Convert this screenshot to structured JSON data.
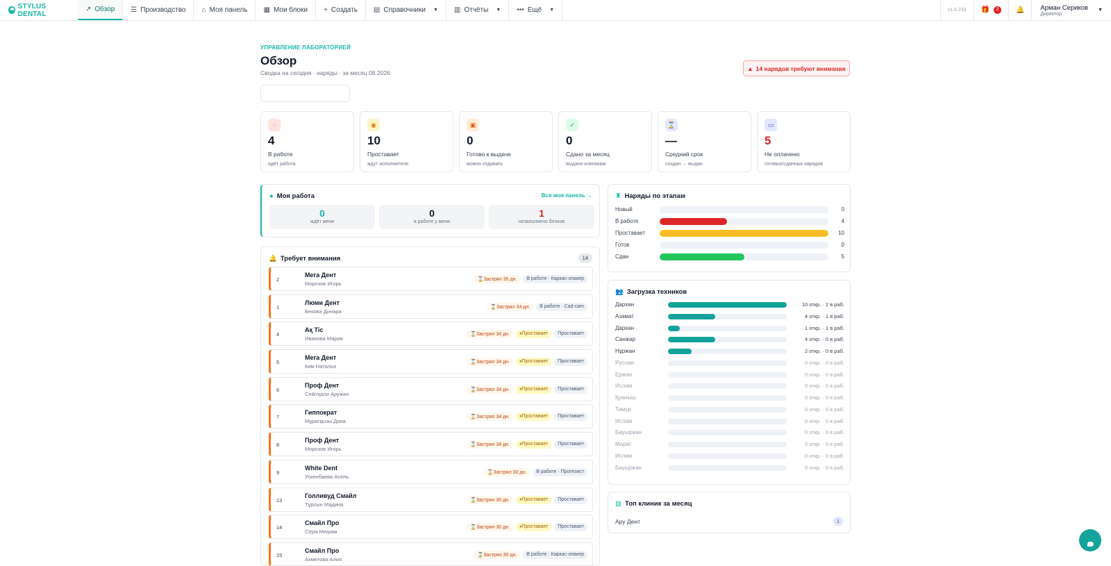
{
  "nav": {
    "brand": "STYLUS DENTAL",
    "items": [
      {
        "label": "Обзор",
        "icon": "chart-icon"
      },
      {
        "label": "Производство",
        "icon": "list-icon"
      },
      {
        "label": "Моя панель",
        "icon": "home-icon"
      },
      {
        "label": "Мои блоки",
        "icon": "grid-icon"
      },
      {
        "label": "Создать",
        "icon": "plus-icon"
      },
      {
        "label": "Справочники",
        "icon": "book-icon"
      },
      {
        "label": "Отчёты",
        "icon": "bar-chart-icon"
      },
      {
        "label": "Ещё",
        "icon": "dots-icon"
      }
    ],
    "version": "v1.6.233",
    "gift_count": "2",
    "user_name": "Арман Сериков",
    "user_role": "Директор"
  },
  "header": {
    "kicker": "УПРАВЛЕНИЕ ЛАБОРАТОРИЕЙ",
    "title": "Обзор",
    "subtitle": "Сводка на сегодня · наряды · за месяц 08.2026",
    "alert": "14 нарядов требуют внимания"
  },
  "kpis": [
    {
      "value": "4",
      "label": "В работе",
      "sub": "идёт работа",
      "icon": "spinner-icon",
      "bg": "#fee2e2",
      "fg": "#ef4444"
    },
    {
      "value": "10",
      "label": "Проставает",
      "sub": "ждут исполнителя",
      "icon": "pause-circle-icon",
      "bg": "#fef3c7",
      "fg": "#d97706"
    },
    {
      "value": "0",
      "label": "Готово к выдаче",
      "sub": "можно отдавать",
      "icon": "box-icon",
      "bg": "#ffedd5",
      "fg": "#ea580c"
    },
    {
      "value": "0",
      "label": "Сдано за месяц",
      "sub": "выдано клиникам",
      "icon": "check-icon",
      "bg": "#dcfce7",
      "fg": "#16a34a"
    },
    {
      "value": "—",
      "label": "Средний срок",
      "sub": "создан → выдан",
      "icon": "hourglass-icon",
      "bg": "#e0e7ff",
      "fg": "#4f46e5"
    },
    {
      "value": "5",
      "label": "Не оплачено",
      "sub": "готовых/сданных нарядов",
      "icon": "money-icon",
      "bg": "#e0e7ff",
      "fg": "#4f46e5",
      "value_color": "#dc2626"
    }
  ],
  "my_work": {
    "title": "Моя работа",
    "link": "Вся моя панель →",
    "boxes": [
      {
        "value": "0",
        "label": "ждёт меня",
        "color": "#14b8a6"
      },
      {
        "value": "0",
        "label": "в работе у меня",
        "color": "#111827"
      },
      {
        "value": "1",
        "label": "незаполнено блоков",
        "color": "#dc2626"
      }
    ]
  },
  "attention": {
    "title": "Требует внимания",
    "count": "14",
    "rows": [
      {
        "num": "2",
        "clinic": "Мега Дент",
        "person": "Морозов Игорь",
        "tags": [
          {
            "t": "⌛Застрял 35 дн.",
            "k": "stuck"
          },
          {
            "t": "В работе · Каркас-опакер",
            "k": "st"
          }
        ]
      },
      {
        "num": "1",
        "clinic": "Люми Дент",
        "person": "Бекова Динара",
        "tags": [
          {
            "t": "⌛Застрял 34 дн.",
            "k": "stuck"
          },
          {
            "t": "В работе · Cad-cam",
            "k": "st"
          }
        ]
      },
      {
        "num": "4",
        "clinic": "Ақ Тіс",
        "person": "Иванова Мария",
        "tags": [
          {
            "t": "⌛Застрял 34 дн.",
            "k": "stuck"
          },
          {
            "t": "⏸Проставает",
            "k": "wait"
          },
          {
            "t": "Проставает",
            "k": "st"
          }
        ]
      },
      {
        "num": "5",
        "clinic": "Мега Дент",
        "person": "Ким Наталья",
        "tags": [
          {
            "t": "⌛Застрял 34 дн.",
            "k": "stuck"
          },
          {
            "t": "⏸Проставает",
            "k": "wait"
          },
          {
            "t": "Проставает",
            "k": "st"
          }
        ]
      },
      {
        "num": "6",
        "clinic": "Проф Дент",
        "person": "Сейітқали Аружан",
        "tags": [
          {
            "t": "⌛Застрял 34 дн.",
            "k": "stuck"
          },
          {
            "t": "⏸Проставает",
            "k": "wait"
          },
          {
            "t": "Проставает",
            "k": "st"
          }
        ]
      },
      {
        "num": "7",
        "clinic": "Гиппократ",
        "person": "Мұратқызы Дана",
        "tags": [
          {
            "t": "⌛Застрял 34 дн.",
            "k": "stuck"
          },
          {
            "t": "⏸Проставает",
            "k": "wait"
          },
          {
            "t": "Проставает",
            "k": "st"
          }
        ]
      },
      {
        "num": "8",
        "clinic": "Проф Дент",
        "person": "Морозов Игорь",
        "tags": [
          {
            "t": "⌛Застрял 34 дн.",
            "k": "stuck"
          },
          {
            "t": "⏸Проставает",
            "k": "wait"
          },
          {
            "t": "Проставает",
            "k": "st"
          }
        ]
      },
      {
        "num": "9",
        "clinic": "White Dent",
        "person": "Ускенбаева Асель",
        "tags": [
          {
            "t": "⌛Застрял 30 дн.",
            "k": "stuck"
          },
          {
            "t": "В работе · Протезист",
            "k": "st"
          }
        ]
      },
      {
        "num": "13",
        "clinic": "Голливуд Смайл",
        "person": "Тұрсын Мадина",
        "tags": [
          {
            "t": "⌛Застрял 30 дн.",
            "k": "stuck"
          },
          {
            "t": "⏸Проставает",
            "k": "wait"
          },
          {
            "t": "Проставает",
            "k": "st"
          }
        ]
      },
      {
        "num": "14",
        "clinic": "Смайл Про",
        "person": "Серік Меірам",
        "tags": [
          {
            "t": "⌛Застрял 30 дн.",
            "k": "stuck"
          },
          {
            "t": "⏸Проставает",
            "k": "wait"
          },
          {
            "t": "Проставает",
            "k": "st"
          }
        ]
      },
      {
        "num": "15",
        "clinic": "Смайл Про",
        "person": "Ахметова Алия",
        "tags": [
          {
            "t": "⌛Застрял 30 дн.",
            "k": "stuck"
          },
          {
            "t": "В работе · Каркас-опакер",
            "k": "st"
          }
        ]
      }
    ]
  },
  "stages": {
    "title": "Наряды по этапам",
    "max": 10,
    "items": [
      {
        "name": "Новый",
        "value": 0,
        "color": "#dc2626"
      },
      {
        "name": "В работе",
        "value": 4,
        "color": "#dc2626"
      },
      {
        "name": "Проставает",
        "value": 10,
        "color": "#fbbf24"
      },
      {
        "name": "Готов",
        "value": 0,
        "color": "#22c55e"
      },
      {
        "name": "Сдан",
        "value": 5,
        "color": "#22c55e"
      }
    ]
  },
  "techs": {
    "title": "Загрузка техников",
    "max": 10,
    "items": [
      {
        "name": "Дархан",
        "open": 10,
        "label": "10 откр. · 2 в раб."
      },
      {
        "name": "Азамат",
        "open": 4,
        "label": "4 откр. · 1 в раб."
      },
      {
        "name": "Дархан",
        "open": 1,
        "label": "1 откр. · 1 в раб."
      },
      {
        "name": "Санжар",
        "open": 4,
        "label": "4 откр. · 0 в раб."
      },
      {
        "name": "Нұржан",
        "open": 2,
        "label": "2 откр. · 0 в раб."
      },
      {
        "name": "Руслан",
        "open": 0,
        "label": "0 откр. · 0 в раб."
      },
      {
        "name": "Ержан",
        "open": 0,
        "label": "0 откр. · 0 в раб."
      },
      {
        "name": "Ислам",
        "open": 0,
        "label": "0 откр. · 0 в раб."
      },
      {
        "name": "Қуаныш",
        "open": 0,
        "label": "0 откр. · 0 в раб."
      },
      {
        "name": "Тимур",
        "open": 0,
        "label": "0 откр. · 0 в раб."
      },
      {
        "name": "Ислам",
        "open": 0,
        "label": "0 откр. · 0 в раб."
      },
      {
        "name": "Бауыржан",
        "open": 0,
        "label": "0 откр. · 0 в раб."
      },
      {
        "name": "Марат",
        "open": 0,
        "label": "0 откр. · 0 в раб."
      },
      {
        "name": "Ислам",
        "open": 0,
        "label": "0 откр. · 0 в раб."
      },
      {
        "name": "Бауыржан",
        "open": 0,
        "label": "0 откр. · 0 в раб."
      }
    ]
  },
  "clinics": {
    "title": "Топ клиник за месяц",
    "items": [
      {
        "name": "Ару Дент",
        "value": "1"
      }
    ]
  }
}
